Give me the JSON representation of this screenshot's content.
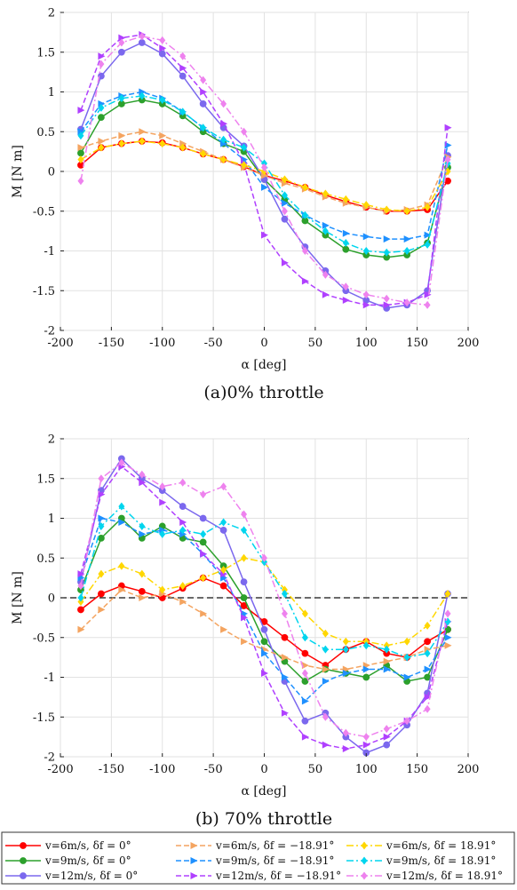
{
  "panels": [
    {
      "caption": "(a)0% throttle",
      "xlabel": "α [deg]",
      "ylabel": "M [N m]"
    },
    {
      "caption": "(b) 70% throttle",
      "xlabel": "α [deg]",
      "ylabel": "M [N m]"
    }
  ],
  "legend": [
    {
      "label": "v=6m/s, δf = 0°",
      "color": "#ff0000",
      "dash": "",
      "marker": "circle"
    },
    {
      "label": "v=9m/s, δf = 0°",
      "color": "#2ca02c",
      "dash": "",
      "marker": "circle"
    },
    {
      "label": "v=12m/s, δf = 0°",
      "color": "#7b68ee",
      "dash": "",
      "marker": "circle"
    },
    {
      "label": "v=6m/s, δf = −18.91°",
      "color": "#f4a460",
      "dash": "6,3",
      "marker": "tri"
    },
    {
      "label": "v=9m/s, δf = −18.91°",
      "color": "#1e90ff",
      "dash": "6,3",
      "marker": "tri"
    },
    {
      "label": "v=12m/s, δf = −18.91°",
      "color": "#b040ff",
      "dash": "6,3",
      "marker": "tri"
    },
    {
      "label": "v=6m/s, δf = 18.91°",
      "color": "#ffd700",
      "dash": "8,3,2,3",
      "marker": "diamond"
    },
    {
      "label": "v=9m/s, δf = 18.91°",
      "color": "#00d5ee",
      "dash": "8,3,2,3",
      "marker": "diamond"
    },
    {
      "label": "v=12m/s, δf = 18.91°",
      "color": "#ee82ee",
      "dash": "8,3,2,3",
      "marker": "diamond"
    }
  ],
  "chart_data": [
    {
      "type": "line",
      "xlabel": "α [deg]",
      "ylabel": "M [N m]",
      "xlim": [
        -200,
        200
      ],
      "ylim": [
        -2,
        2
      ],
      "xticks": [
        -200,
        -150,
        -100,
        -50,
        0,
        50,
        100,
        150,
        200
      ],
      "yticks": [
        -2,
        -1.5,
        -1,
        -0.5,
        0,
        0.5,
        1,
        1.5,
        2
      ],
      "grid": true,
      "x": [
        -180,
        -160,
        -140,
        -120,
        -100,
        -80,
        -60,
        -40,
        -20,
        0,
        20,
        40,
        60,
        80,
        100,
        120,
        140,
        160,
        180
      ],
      "series": [
        {
          "name": "v=6m/s, δf = 0°",
          "values": [
            0.08,
            0.3,
            0.35,
            0.38,
            0.36,
            0.3,
            0.22,
            0.15,
            0.06,
            -0.05,
            -0.12,
            -0.2,
            -0.3,
            -0.38,
            -0.45,
            -0.5,
            -0.5,
            -0.48,
            -0.12
          ]
        },
        {
          "name": "v=9m/s, δf = 0°",
          "values": [
            0.23,
            0.68,
            0.85,
            0.9,
            0.85,
            0.7,
            0.5,
            0.35,
            0.25,
            -0.1,
            -0.35,
            -0.62,
            -0.8,
            -0.98,
            -1.05,
            -1.08,
            -1.05,
            -0.9,
            0.05
          ]
        },
        {
          "name": "v=12m/s, δf = 0°",
          "values": [
            0.53,
            1.2,
            1.5,
            1.62,
            1.48,
            1.2,
            0.85,
            0.55,
            0.32,
            -0.1,
            -0.6,
            -0.95,
            -1.25,
            -1.5,
            -1.62,
            -1.72,
            -1.68,
            -1.5,
            0.2
          ]
        },
        {
          "name": "v=6m/s, δf = −18.91°",
          "values": [
            0.3,
            0.38,
            0.45,
            0.5,
            0.45,
            0.35,
            0.25,
            0.15,
            0.05,
            -0.05,
            -0.15,
            -0.22,
            -0.32,
            -0.4,
            -0.45,
            -0.5,
            -0.48,
            -0.42,
            0.18
          ]
        },
        {
          "name": "v=9m/s, δf = −18.91°",
          "values": [
            0.5,
            0.85,
            0.95,
            1.0,
            0.92,
            0.75,
            0.55,
            0.35,
            0.15,
            -0.2,
            -0.4,
            -0.55,
            -0.68,
            -0.78,
            -0.82,
            -0.85,
            -0.85,
            -0.8,
            0.33
          ]
        },
        {
          "name": "v=12m/s, δf = −18.91°",
          "values": [
            0.77,
            1.45,
            1.68,
            1.72,
            1.55,
            1.3,
            1.0,
            0.6,
            0.1,
            -0.8,
            -1.15,
            -1.38,
            -1.55,
            -1.62,
            -1.68,
            -1.68,
            -1.65,
            -1.55,
            0.55
          ]
        },
        {
          "name": "v=6m/s, δf = 18.91°",
          "values": [
            0.15,
            0.3,
            0.35,
            0.38,
            0.35,
            0.3,
            0.22,
            0.15,
            0.08,
            0.0,
            -0.1,
            -0.2,
            -0.28,
            -0.35,
            -0.42,
            -0.48,
            -0.5,
            -0.45,
            0.0
          ]
        },
        {
          "name": "v=9m/s, δf = 18.91°",
          "values": [
            0.45,
            0.8,
            0.92,
            0.95,
            0.9,
            0.75,
            0.55,
            0.4,
            0.3,
            0.1,
            -0.3,
            -0.55,
            -0.75,
            -0.9,
            -1.0,
            -1.02,
            -1.0,
            -0.92,
            0.1
          ]
        },
        {
          "name": "v=12m/s, δf = 18.91°",
          "values": [
            -0.12,
            1.35,
            1.62,
            1.7,
            1.65,
            1.45,
            1.15,
            0.85,
            0.5,
            0.05,
            -0.5,
            -1.0,
            -1.3,
            -1.45,
            -1.55,
            -1.6,
            -1.65,
            -1.68,
            0.15
          ]
        }
      ]
    },
    {
      "type": "line",
      "xlabel": "α [deg]",
      "ylabel": "M [N m]",
      "xlim": [
        -200,
        200
      ],
      "ylim": [
        -2,
        2
      ],
      "xticks": [
        -200,
        -150,
        -100,
        -50,
        0,
        50,
        100,
        150,
        200
      ],
      "yticks": [
        -2,
        -1.5,
        -1,
        -0.5,
        0,
        0.5,
        1,
        1.5,
        2
      ],
      "grid": true,
      "zero_line": true,
      "x": [
        -180,
        -160,
        -140,
        -120,
        -100,
        -80,
        -60,
        -40,
        -20,
        0,
        20,
        40,
        60,
        80,
        100,
        120,
        140,
        160,
        180
      ],
      "series": [
        {
          "name": "v=6m/s, δf = 0°",
          "values": [
            -0.15,
            0.05,
            0.15,
            0.08,
            0.0,
            0.12,
            0.25,
            0.15,
            -0.1,
            -0.3,
            -0.5,
            -0.7,
            -0.85,
            -0.65,
            -0.55,
            -0.7,
            -0.75,
            -0.55,
            -0.4
          ]
        },
        {
          "name": "v=9m/s, δf = 0°",
          "values": [
            0.1,
            0.75,
            1.0,
            0.75,
            0.9,
            0.75,
            0.7,
            0.4,
            0.0,
            -0.55,
            -0.8,
            -1.05,
            -0.9,
            -0.95,
            -1.0,
            -0.85,
            -1.05,
            -1.0,
            -0.4
          ]
        },
        {
          "name": "v=12m/s, δf = 0°",
          "values": [
            0.2,
            1.35,
            1.75,
            1.5,
            1.35,
            1.15,
            1.0,
            0.85,
            0.2,
            -0.4,
            -1.05,
            -1.55,
            -1.45,
            -1.75,
            -1.95,
            -1.85,
            -1.6,
            -1.2,
            0.05
          ]
        },
        {
          "name": "v=6m/s, δf = −18.91°",
          "values": [
            -0.4,
            -0.15,
            0.1,
            0.0,
            0.05,
            -0.05,
            -0.2,
            -0.4,
            -0.55,
            -0.65,
            -0.75,
            -0.85,
            -0.9,
            -0.9,
            -0.85,
            -0.8,
            -0.75,
            -0.65,
            -0.6
          ]
        },
        {
          "name": "v=9m/s, δf = −18.91°",
          "values": [
            0.25,
            1.0,
            0.95,
            0.8,
            0.85,
            0.8,
            0.55,
            0.25,
            -0.2,
            -0.7,
            -1.0,
            -1.3,
            -1.05,
            -0.95,
            -0.9,
            -0.9,
            -1.0,
            -0.9,
            -0.5
          ]
        },
        {
          "name": "v=12m/s, δf = −18.91°",
          "values": [
            0.3,
            1.3,
            1.65,
            1.45,
            1.2,
            0.95,
            0.55,
            0.3,
            -0.25,
            -0.95,
            -1.45,
            -1.75,
            -1.85,
            -1.9,
            -1.85,
            -1.75,
            -1.55,
            -1.25,
            -0.3
          ]
        },
        {
          "name": "v=6m/s, δf = 18.91°",
          "values": [
            -0.05,
            0.3,
            0.4,
            0.3,
            0.1,
            0.15,
            0.25,
            0.35,
            0.5,
            0.45,
            0.1,
            -0.2,
            -0.45,
            -0.55,
            -0.55,
            -0.6,
            -0.55,
            -0.35,
            0.05
          ]
        },
        {
          "name": "v=9m/s, δf = 18.91°",
          "values": [
            0.0,
            0.9,
            1.15,
            0.9,
            0.8,
            0.85,
            0.8,
            0.95,
            0.85,
            0.45,
            0.05,
            -0.5,
            -0.65,
            -0.65,
            -0.6,
            -0.65,
            -0.75,
            -0.7,
            -0.3
          ]
        },
        {
          "name": "v=12m/s, δf = 18.91°",
          "values": [
            0.15,
            1.5,
            1.7,
            1.55,
            1.4,
            1.45,
            1.3,
            1.4,
            1.05,
            0.5,
            -0.2,
            -0.95,
            -1.5,
            -1.7,
            -1.75,
            -1.65,
            -1.55,
            -1.4,
            -0.2
          ]
        }
      ]
    }
  ]
}
